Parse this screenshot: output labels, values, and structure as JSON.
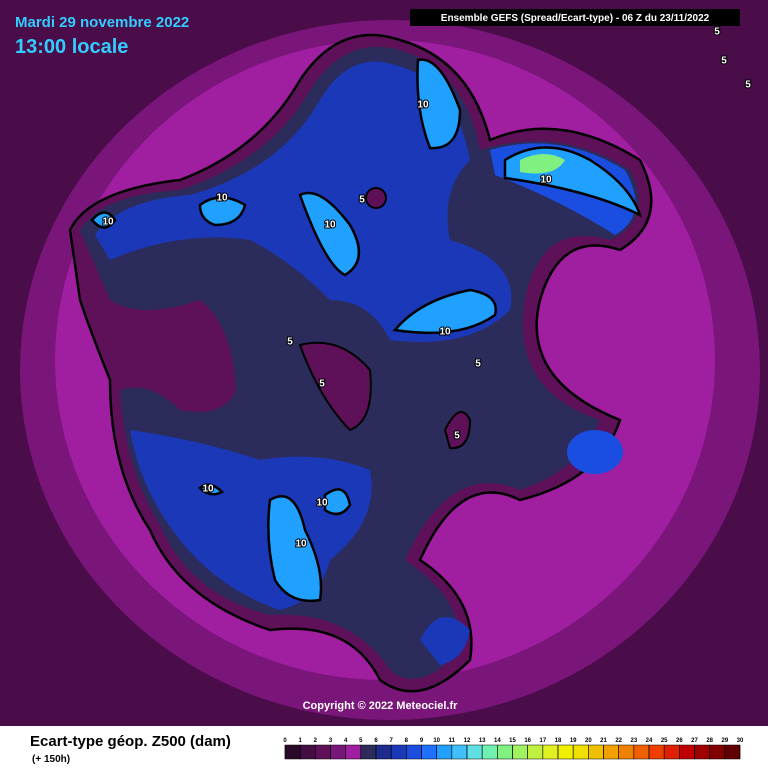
{
  "header": {
    "date": "Mardi 29 novembre 2022",
    "time": "13:00 locale",
    "model": "Ensemble GEFS  (Spread/Ecart-type) - 06 Z du 23/11/2022"
  },
  "map": {
    "contour_labels": [
      "10",
      "10",
      "10",
      "10",
      "5",
      "10",
      "10",
      "5",
      "5",
      "5",
      "5",
      "10",
      "10",
      "10",
      "5",
      "5",
      "5"
    ],
    "copyright": "Copyright © 2022 Meteociel.fr"
  },
  "legend": {
    "title": "Ecart-type géop. Z500 (dam)",
    "lead": "(+ 150h)",
    "ticks": [
      0,
      1,
      2,
      3,
      4,
      5,
      6,
      7,
      8,
      9,
      10,
      11,
      12,
      13,
      14,
      15,
      16,
      17,
      18,
      19,
      20,
      21,
      22,
      23,
      24,
      25,
      26,
      27,
      28,
      29,
      30
    ],
    "colors": [
      "#2a0a2a",
      "#440d44",
      "#5e1058",
      "#7a157a",
      "#a01ea0",
      "#2c2c5c",
      "#1e2c8c",
      "#1a38b8",
      "#1a4ee0",
      "#2070ff",
      "#20a0ff",
      "#40c0ff",
      "#60e0e0",
      "#70f0b0",
      "#80f080",
      "#a0f060",
      "#c0f040",
      "#e0f020",
      "#f0f000",
      "#f0e000",
      "#f0c000",
      "#f0a000",
      "#f08000",
      "#f06000",
      "#f04000",
      "#e02000",
      "#c00000",
      "#a00000",
      "#800000",
      "#600000"
    ]
  }
}
